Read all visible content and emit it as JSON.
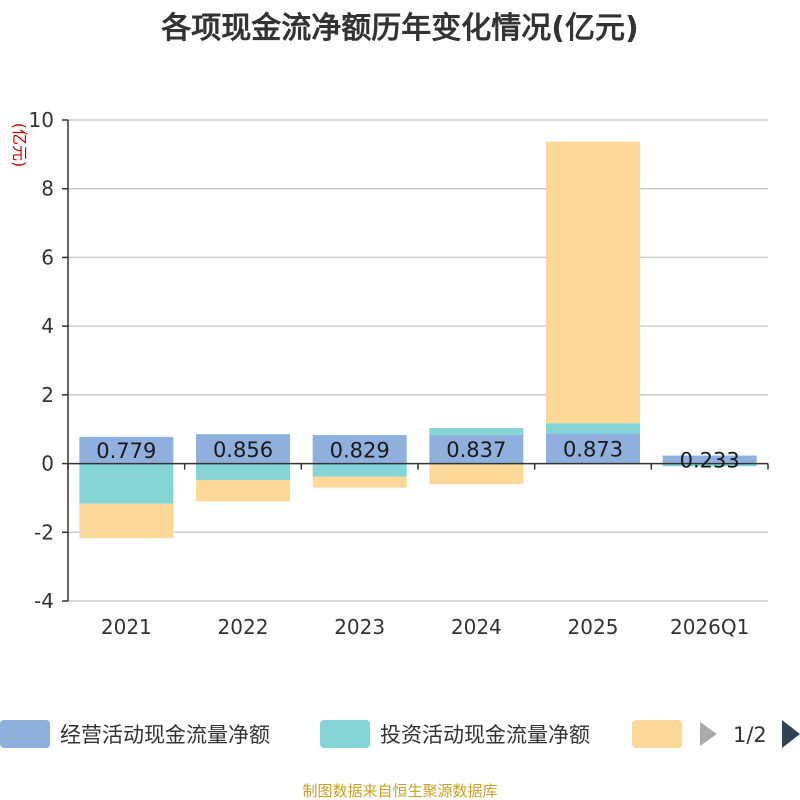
{
  "chart_data": {
    "type": "bar",
    "stacked": true,
    "title": "各项现金流净额历年变化情况(亿元)",
    "ylabel": "(亿元)",
    "xlabel": "",
    "categories": [
      "2021",
      "2022",
      "2023",
      "2024",
      "2025",
      "2026Q1"
    ],
    "ylim": [
      -4,
      10
    ],
    "yticks": [
      10,
      8,
      6,
      4,
      2,
      0,
      -2,
      -4
    ],
    "grid": true,
    "series": [
      {
        "name": "经营活动现金流量净额",
        "color": "#8fb0dc",
        "values": [
          0.779,
          0.856,
          0.829,
          0.837,
          0.873,
          0.233
        ],
        "labels": [
          "0.779",
          "0.856",
          "0.829",
          "0.837",
          "0.873",
          "0.233"
        ]
      },
      {
        "name": "投资活动现金流量净额",
        "color": "#85d4d6",
        "values": [
          -1.17,
          -0.48,
          -0.38,
          0.2,
          0.3,
          -0.08
        ]
      },
      {
        "name": "",
        "color": "#fcd899",
        "values": [
          -1.0,
          -0.62,
          -0.32,
          -0.6,
          8.2,
          0.0
        ]
      }
    ],
    "legend": {
      "placement": "bottom",
      "page": "1/2"
    },
    "source": "制图数据来自恒生聚源数据库"
  }
}
